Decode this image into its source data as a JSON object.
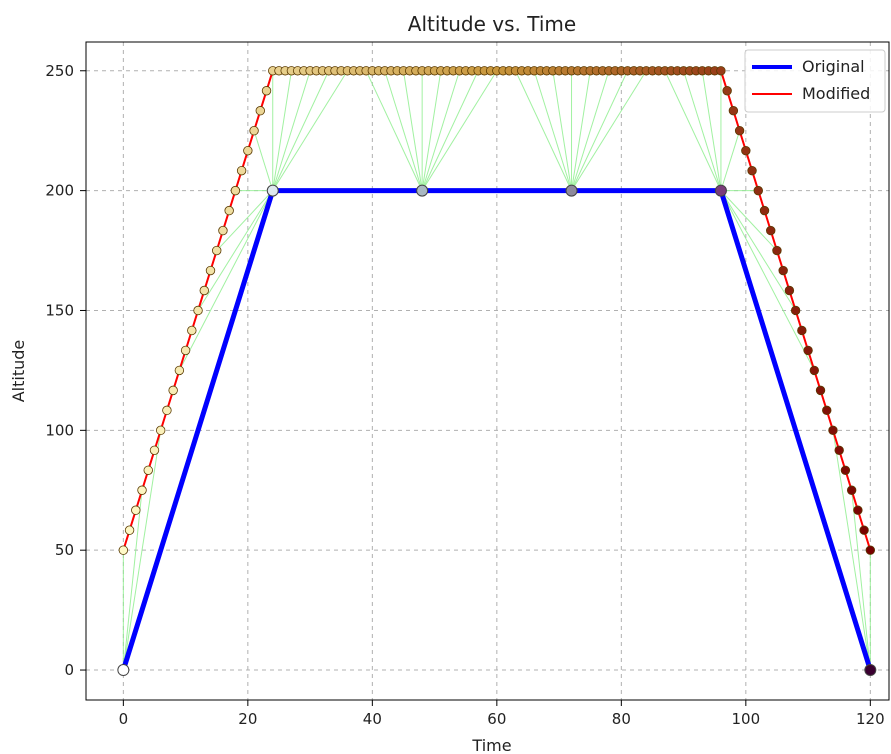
{
  "chart_data": {
    "type": "line",
    "title": "Altitude vs. Time",
    "xlabel": "Time",
    "ylabel": "Altitude",
    "xlim": [
      -6,
      123
    ],
    "ylim": [
      -12.5,
      262
    ],
    "xticks": [
      0,
      20,
      40,
      60,
      80,
      100,
      120
    ],
    "yticks": [
      0,
      50,
      100,
      150,
      200,
      250
    ],
    "grid": true,
    "legend": "top-right",
    "series": [
      {
        "name": "Original",
        "color": "#0000ff",
        "x": [
          0,
          24,
          48,
          72,
          96,
          120
        ],
        "y": [
          0,
          200,
          200,
          200,
          200,
          0
        ]
      },
      {
        "name": "Modified",
        "color": "#ff0000",
        "x": [
          0,
          24,
          96,
          120
        ],
        "y": [
          50,
          250,
          250,
          50
        ]
      }
    ],
    "connector_color": "#90ee90"
  }
}
